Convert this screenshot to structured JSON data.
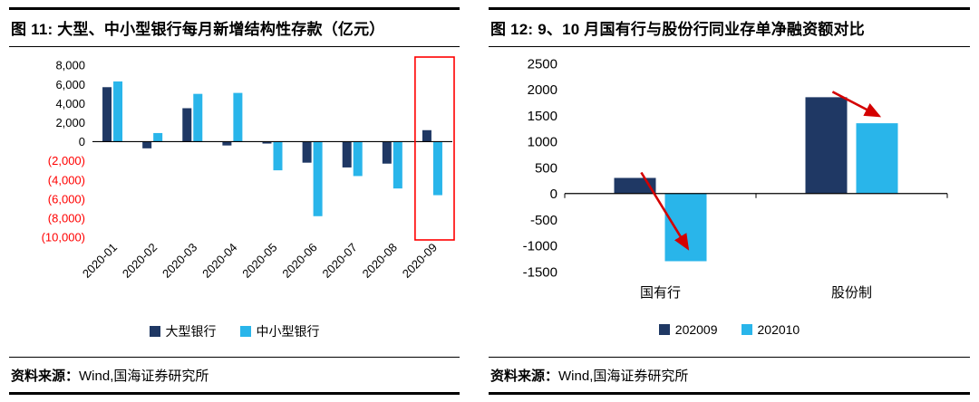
{
  "chart_data": [
    {
      "type": "bar",
      "title": "图 11: 大型、中小型银行每月新增结构性存款（亿元）",
      "categories": [
        "2020-01",
        "2020-02",
        "2020-03",
        "2020-04",
        "2020-05",
        "2020-06",
        "2020-07",
        "2020-08",
        "2020-09"
      ],
      "series": [
        {
          "name": "大型银行",
          "color": "#1F3864",
          "values": [
            5700,
            -700,
            3500,
            -400,
            -200,
            -2200,
            -2700,
            -2300,
            1200
          ]
        },
        {
          "name": "中小型银行",
          "color": "#29B5EA",
          "values": [
            6300,
            900,
            5000,
            5100,
            -3000,
            -7800,
            -3600,
            -4900,
            -5600
          ]
        }
      ],
      "ylim": [
        -10000,
        8000
      ],
      "ytick_step": 2000,
      "ytick_labels": [
        "8,000",
        "6,000",
        "4,000",
        "2,000",
        "0",
        "(2,000)",
        "(4,000)",
        "(6,000)",
        "(8,000)",
        "(10,000)"
      ],
      "negative_tick_color": "#FF0000",
      "grid": false,
      "legend_position": "bottom",
      "highlight_box": {
        "category": "2020-09",
        "color": "#FF0000"
      },
      "source_label": "资料来源：",
      "source_text": "Wind,国海证券研究所"
    },
    {
      "type": "bar",
      "title": "图 12: 9、10 月国有行与股份行同业存单净融资额对比",
      "categories": [
        "国有行",
        "股份制"
      ],
      "series": [
        {
          "name": "202009",
          "color": "#1F3864",
          "values": [
            300,
            1850
          ]
        },
        {
          "name": "202010",
          "color": "#29B5EA",
          "values": [
            -1300,
            1350
          ]
        }
      ],
      "ylim": [
        -1500,
        2500
      ],
      "ytick_step": 500,
      "ytick_labels": [
        "2500",
        "2000",
        "1500",
        "1000",
        "500",
        "0",
        "-500",
        "-1000",
        "-1500"
      ],
      "grid": false,
      "legend_position": "bottom",
      "arrows": [
        {
          "category_index": 0,
          "from_series": "202009",
          "to_series": "202010"
        },
        {
          "category_index": 1,
          "from_series": "202009",
          "to_series": "202010"
        }
      ],
      "arrow_color": "#D40000",
      "source_label": "资料来源：",
      "source_text": "Wind,国海证券研究所"
    }
  ]
}
